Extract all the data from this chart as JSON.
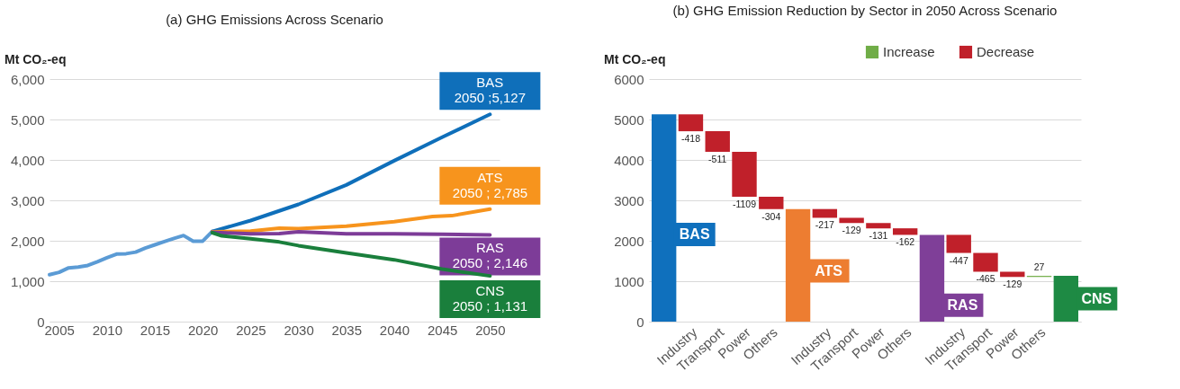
{
  "chart_data": [
    {
      "type": "line",
      "title": "(a)  GHG Emissions Across Scenario",
      "ylabel": "Mt CO₂-eq",
      "xlim": [
        2004,
        2051
      ],
      "xticks": [
        2005,
        2010,
        2015,
        2020,
        2025,
        2030,
        2035,
        2040,
        2045,
        2050
      ],
      "ylim": [
        0,
        6000
      ],
      "yticks": [
        0,
        {
          "value": 1000,
          "label": "1,000"
        },
        {
          "value": 2000,
          "label": "2,000"
        },
        {
          "value": 3000,
          "label": "3,000"
        },
        {
          "value": 4000,
          "label": "4,000"
        },
        {
          "value": 5000,
          "label": "5,000"
        },
        {
          "value": 6000,
          "label": "6,000"
        }
      ],
      "grid": "y",
      "line_style": "solid",
      "series": [
        {
          "color": "#5b9bd5",
          "x": [
            2004,
            2005,
            2006,
            2007,
            2008,
            2009,
            2010,
            2011,
            2012,
            2013,
            2014,
            2015,
            2016,
            2017,
            2018,
            2019,
            2020,
            2021
          ],
          "values": [
            1160,
            1220,
            1330,
            1350,
            1390,
            1480,
            1580,
            1670,
            1680,
            1720,
            1820,
            1900,
            1980,
            2060,
            2130,
            1990,
            1990,
            2230
          ]
        },
        {
          "name": "BAS",
          "color": "#0f6fba",
          "x": [
            2021,
            2025,
            2030,
            2035,
            2040,
            2045,
            2050
          ],
          "values": [
            2230,
            2500,
            2900,
            3380,
            3980,
            4560,
            5127
          ]
        },
        {
          "name": "ATS",
          "color": "#f7941d",
          "x": [
            2021,
            2025,
            2028,
            2030,
            2035,
            2040,
            2044,
            2046,
            2050
          ],
          "values": [
            2220,
            2240,
            2310,
            2300,
            2360,
            2470,
            2600,
            2620,
            2785
          ]
        },
        {
          "name": "RAS",
          "color": "#7d3c98",
          "x": [
            2021,
            2025,
            2028,
            2030,
            2035,
            2040,
            2045,
            2050
          ],
          "values": [
            2210,
            2170,
            2180,
            2220,
            2170,
            2170,
            2160,
            2146
          ]
        },
        {
          "name": "CNS",
          "color": "#1a7f3c",
          "x": [
            2021,
            2022,
            2025,
            2028,
            2030,
            2035,
            2040,
            2045,
            2050
          ],
          "values": [
            2200,
            2120,
            2050,
            1970,
            1880,
            1700,
            1530,
            1300,
            1131
          ]
        }
      ],
      "annotations": [
        "2050 ;5,127",
        "2050 ; 2,785",
        "2050 ; 2,146",
        "2050 ; 1,131"
      ]
    },
    {
      "type": "bar",
      "title": "(b)  GHG Emission Reduction by Sector in 2050 Across Scenario",
      "ylabel": "Mt CO₂-eq",
      "ylim": [
        0,
        6000
      ],
      "yticks": [
        0,
        1000,
        2000,
        3000,
        4000,
        5000,
        6000
      ],
      "grid": "y",
      "legend": "top right",
      "categories": [
        null,
        "Industry",
        "Transport",
        "Power",
        "Others",
        null,
        "Industry",
        "Transport",
        "Power",
        "Others",
        null,
        "Industry",
        "Transport",
        "Power",
        "Others",
        null
      ],
      "series": [
        {
          "name": "BAS",
          "color": "#0f70bd",
          "values": [
            5127,
            null,
            null,
            null,
            null,
            null,
            null,
            null,
            null,
            null,
            null,
            null,
            null,
            null,
            null,
            null
          ]
        },
        {
          "name": "ATS",
          "color": "#ed7d31",
          "values": [
            null,
            null,
            null,
            null,
            null,
            2785,
            null,
            null,
            null,
            null,
            null,
            null,
            null,
            null,
            null,
            null
          ]
        },
        {
          "name": "RAS",
          "color": "#7f3f98",
          "values": [
            null,
            null,
            null,
            null,
            null,
            null,
            null,
            null,
            null,
            null,
            2146,
            null,
            null,
            null,
            null,
            null
          ]
        },
        {
          "name": "CNS",
          "color": "#1e8a44",
          "values": [
            null,
            null,
            null,
            null,
            null,
            null,
            null,
            null,
            null,
            null,
            null,
            null,
            null,
            null,
            null,
            1131
          ]
        },
        {
          "name": "Increase",
          "color": "#70ad47",
          "values": [
            null,
            null,
            null,
            null,
            null,
            null,
            null,
            null,
            null,
            null,
            null,
            null,
            null,
            null,
            27,
            null
          ],
          "base": [
            null,
            null,
            null,
            null,
            null,
            null,
            null,
            null,
            null,
            null,
            null,
            null,
            null,
            null,
            1105,
            null
          ],
          "value_labels": [
            null,
            null,
            null,
            null,
            null,
            null,
            null,
            null,
            null,
            null,
            null,
            null,
            null,
            null,
            "27",
            null
          ]
        },
        {
          "name": "Decrease",
          "color": "#c0202a",
          "values": [
            null,
            -418,
            -511,
            -1109,
            -304,
            null,
            -217,
            -129,
            -131,
            -162,
            null,
            -447,
            -465,
            -129,
            null,
            null
          ],
          "base": [
            null,
            5127,
            4709,
            4198,
            3089,
            null,
            2785,
            2568,
            2439,
            2308,
            null,
            2146,
            1699,
            1234,
            null,
            null
          ],
          "value_labels": [
            null,
            "-418",
            "-511",
            "-1109",
            "-304",
            null,
            "-217",
            "-129",
            "-131",
            "-162",
            null,
            "-447",
            "-465",
            "-129",
            null,
            null
          ]
        }
      ]
    }
  ]
}
